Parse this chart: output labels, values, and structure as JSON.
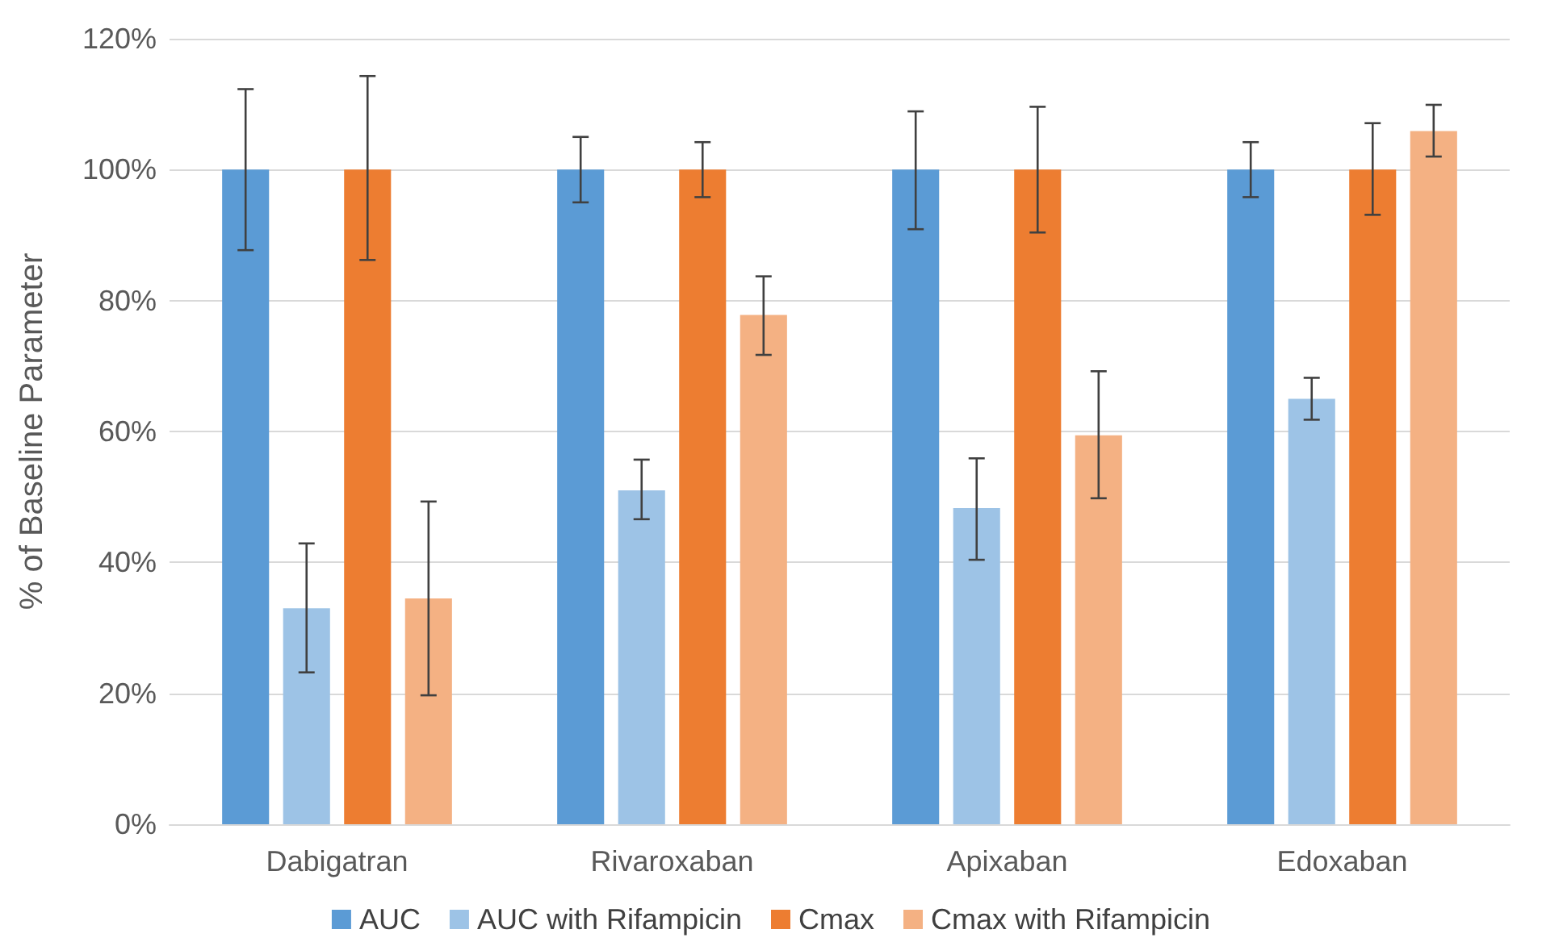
{
  "chart_data": {
    "type": "bar",
    "ylabel": "% of Baseline Parameter",
    "categories": [
      "Dabigatran",
      "Rivaroxaban",
      "Apixaban",
      "Edoxaban"
    ],
    "series": [
      {
        "name": "AUC",
        "color": "#5b9bd5",
        "values": [
          100,
          100,
          100,
          100
        ],
        "errors": [
          [
            87.7,
            112.3
          ],
          [
            95,
            105
          ],
          [
            90.9,
            108.9
          ],
          [
            95.8,
            104.2
          ]
        ]
      },
      {
        "name": "AUC with Rifampicin",
        "color": "#9dc3e6",
        "values": [
          33,
          51,
          48.3,
          65
        ],
        "errors": [
          [
            23.2,
            42.9
          ],
          [
            46.6,
            55.7
          ],
          [
            40.4,
            55.9
          ],
          [
            61.8,
            68.2
          ]
        ]
      },
      {
        "name": "Cmax",
        "color": "#ed7d31",
        "values": [
          100,
          100,
          100,
          100
        ],
        "errors": [
          [
            86.2,
            114.3
          ],
          [
            95.8,
            104.2
          ],
          [
            90.4,
            109.6
          ],
          [
            93.1,
            107.1
          ]
        ]
      },
      {
        "name": "Cmax with Rifampicin",
        "color": "#f4b183",
        "values": [
          34.5,
          77.8,
          59.4,
          105.9
        ],
        "errors": [
          [
            19.7,
            49.3
          ],
          [
            71.7,
            83.7
          ],
          [
            49.8,
            69.2
          ],
          [
            102,
            109.9
          ]
        ]
      }
    ],
    "ylim": [
      0,
      120
    ],
    "yticks": [
      {
        "value": 0,
        "label": "0%"
      },
      {
        "value": 20,
        "label": "20%"
      },
      {
        "value": 40,
        "label": "40%"
      },
      {
        "value": 60,
        "label": "60%"
      },
      {
        "value": 80,
        "label": "80%"
      },
      {
        "value": 100,
        "label": "100%"
      },
      {
        "value": 120,
        "label": "120%"
      }
    ],
    "grid": "y",
    "legend": "bottom"
  }
}
